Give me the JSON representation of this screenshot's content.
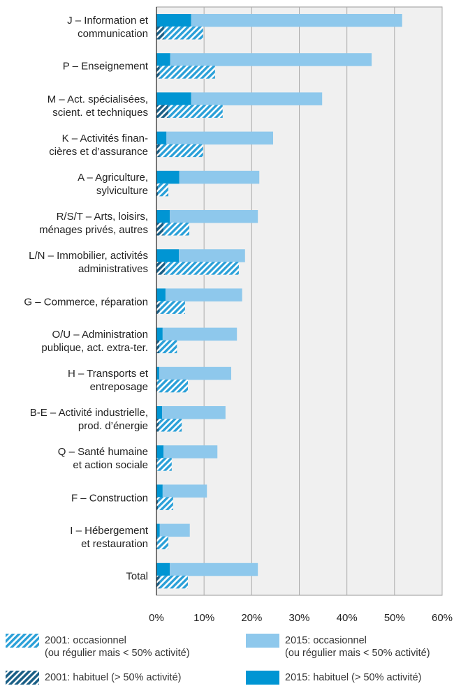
{
  "chart_data": {
    "type": "stacked-bar-horizontal",
    "categories": [
      "J – Information et\ncommunication",
      "P – Enseignement",
      "M – Act. spécialisées,\nscient. et techniques",
      "K – Activités finan-\ncières et d’assurance",
      "A – Agriculture,\nsylviculture",
      "R/S/T – Arts, loisirs,\nménages privés, autres",
      "L/N – Immobilier, activités\nadministratives",
      "G – Commerce, réparation",
      "O/U – Administration\npublique, act. extra-ter.",
      "H – Transports et\nentreposage",
      "B-E – Activité industrielle,\nprod. d’énergie",
      "Q – Santé humaine\net action sociale",
      "F – Construction",
      "I – Hébergement\net restauration",
      "Total"
    ],
    "series": [
      {
        "name": "2015: habituel (> 50% activité)",
        "color": "#0095d3",
        "hatch": false,
        "values": [
          7.3,
          2.9,
          7.3,
          2.1,
          4.8,
          2.8,
          4.7,
          1.9,
          1.3,
          0.6,
          1.2,
          1.5,
          1.3,
          0.7,
          2.8
        ]
      },
      {
        "name": "2015: occasionnel\n(ou régulier mais < 50% activité)",
        "color": "#8ec8ec",
        "hatch": false,
        "values": [
          44.3,
          42.3,
          27.5,
          22.4,
          16.8,
          18.5,
          13.9,
          16.1,
          15.6,
          15.1,
          13.3,
          11.3,
          9.3,
          6.3,
          18.5
        ]
      },
      {
        "name": "2001: habituel (> 50% activité)",
        "color": "#1a5f86",
        "hatch": true,
        "values": [
          1.6,
          0.7,
          2.5,
          0.7,
          0.3,
          1.5,
          1.8,
          0.7,
          0.6,
          0.2,
          0.5,
          0.2,
          0.3,
          0.2,
          0.7
        ]
      },
      {
        "name": "2001: occasionnel\n(ou régulier mais < 50% activité)",
        "color": "#2aa0d8",
        "hatch": true,
        "values": [
          8.2,
          11.6,
          11.4,
          9.1,
          2.2,
          5.4,
          15.5,
          5.3,
          3.7,
          6.4,
          4.8,
          3.0,
          3.2,
          2.3,
          5.9
        ]
      }
    ],
    "xlim": [
      0,
      60
    ],
    "xticks": [
      {
        "value": 0,
        "label": "0%"
      },
      {
        "value": 10,
        "label": "10%"
      },
      {
        "value": 20,
        "label": "20%"
      },
      {
        "value": 30,
        "label": "30%"
      },
      {
        "value": 40,
        "label": "40%"
      },
      {
        "value": 50,
        "label": "50%"
      },
      {
        "value": 60,
        "label": "60%"
      }
    ],
    "grid": true
  }
}
